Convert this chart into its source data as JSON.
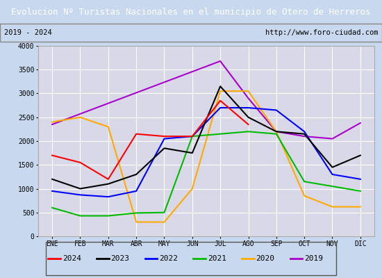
{
  "title": "Evolucion Nº Turistas Nacionales en el municipio de Otero de Herreros",
  "subtitle_left": "2019 - 2024",
  "subtitle_right": "http://www.foro-ciudad.com",
  "months": [
    "ENE",
    "FEB",
    "MAR",
    "ABR",
    "MAY",
    "JUN",
    "JUL",
    "AGO",
    "SEP",
    "OCT",
    "NOV",
    "DIC"
  ],
  "series": {
    "2024": {
      "color": "#ff0000",
      "data": [
        1700,
        1550,
        1200,
        2150,
        2100,
        2100,
        2850,
        2350,
        null,
        null,
        null,
        null
      ]
    },
    "2023": {
      "color": "#000000",
      "data": [
        1200,
        1000,
        1100,
        1300,
        1850,
        1750,
        3150,
        2500,
        2200,
        2150,
        1450,
        1700
      ]
    },
    "2022": {
      "color": "#0000ff",
      "data": [
        950,
        870,
        830,
        950,
        2050,
        2100,
        2700,
        2700,
        2650,
        2200,
        1300,
        1200
      ]
    },
    "2021": {
      "color": "#00bb00",
      "data": [
        600,
        430,
        430,
        490,
        500,
        2100,
        2150,
        2200,
        2150,
        1150,
        1050,
        950
      ]
    },
    "2020": {
      "color": "#ffaa00",
      "data": [
        2400,
        2500,
        2300,
        300,
        300,
        1000,
        3050,
        3050,
        2200,
        850,
        620,
        620
      ]
    },
    "2019": {
      "color": "#aa00cc",
      "data": [
        2350,
        null,
        null,
        null,
        null,
        null,
        3680,
        2900,
        2200,
        2100,
        2050,
        2380
      ]
    }
  },
  "ylim": [
    0,
    4000
  ],
  "yticks": [
    0,
    500,
    1000,
    1500,
    2000,
    2500,
    3000,
    3500,
    4000
  ],
  "title_bg_color": "#4d8fcc",
  "title_text_color": "#ffffff",
  "plot_bg_color": "#d8d8e8",
  "fig_bg_color": "#c8d8ee",
  "grid_color": "#ffffff",
  "legend_items": [
    [
      "2024",
      "#ff0000"
    ],
    [
      "2023",
      "#000000"
    ],
    [
      "2022",
      "#0000ff"
    ],
    [
      "2021",
      "#00bb00"
    ],
    [
      "2020",
      "#ffaa00"
    ],
    [
      "2019",
      "#aa00cc"
    ]
  ]
}
